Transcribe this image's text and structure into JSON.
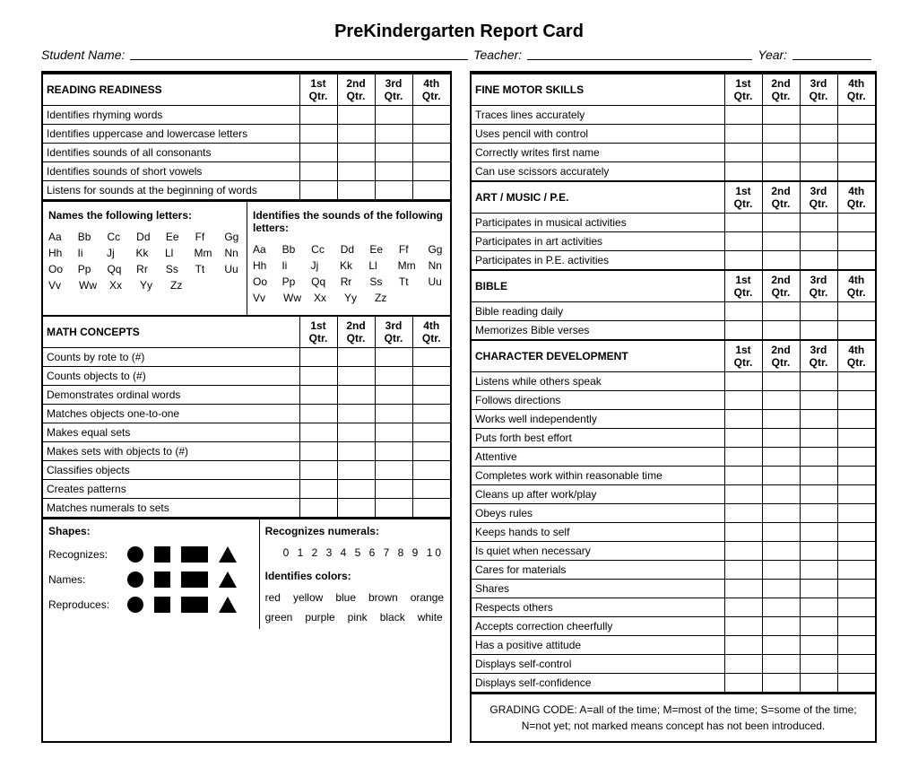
{
  "title": "PreKindergarten Report Card",
  "header": {
    "student_label": "Student Name:",
    "teacher_label": "Teacher:",
    "year_label": "Year:"
  },
  "quarters": [
    "1st Qtr.",
    "2nd Qtr.",
    "3rd Qtr.",
    "4th Qtr."
  ],
  "left": {
    "reading": {
      "title": "READING READINESS",
      "items": [
        "Identifies rhyming words",
        "Identifies uppercase and lowercase letters",
        "Identifies sounds of all consonants",
        "Identifies sounds of short vowels",
        "Listens for sounds at the beginning of words"
      ]
    },
    "letters_block": {
      "left_title": "Names the following letters:",
      "right_title": "Identifies the sounds of  the following letters:",
      "rows": [
        [
          "Aa",
          "Bb",
          "Cc",
          "Dd",
          "Ee",
          "Ff",
          "Gg"
        ],
        [
          "Hh",
          "Ii",
          "Jj",
          "Kk",
          "Ll",
          "Mm",
          "Nn"
        ],
        [
          "Oo",
          "Pp",
          "Qq",
          "Rr",
          "Ss",
          "Tt",
          "Uu"
        ],
        [
          "Vv",
          "Ww",
          "Xx",
          "Yy",
          "Zz"
        ]
      ]
    },
    "math": {
      "title": "MATH CONCEPTS",
      "items": [
        "Counts by rote to (#)",
        "Counts objects to (#)",
        "Demonstrates ordinal words",
        "Matches objects one-to-one",
        "Makes equal sets",
        "Makes sets with objects to (#)",
        "Classifies objects",
        "Creates patterns",
        "Matches numerals to sets"
      ]
    },
    "shapes_block": {
      "shapes_title": "Shapes:",
      "row_labels": [
        "Recognizes:",
        "Names:",
        "Reproduces:"
      ],
      "numerals_title": "Recognizes numerals:",
      "numerals": "0 1 2 3 4 5 6 7 8 9 10",
      "colors_title": "Identifies colors:",
      "colors": [
        "red",
        "yellow",
        "blue",
        "brown",
        "orange",
        "green",
        "purple",
        "pink",
        "black",
        "white"
      ]
    }
  },
  "right": {
    "fine_motor": {
      "title": "FINE MOTOR SKILLS",
      "items": [
        "Traces lines accurately",
        "Uses pencil with control",
        "Correctly writes first name",
        "Can use scissors accurately"
      ]
    },
    "art": {
      "title": "ART / MUSIC / P.E.",
      "items": [
        "Participates in musical activities",
        "Participates in art activities",
        "Participates in P.E. activities"
      ]
    },
    "bible": {
      "title": "BIBLE",
      "items": [
        "Bible reading daily",
        "Memorizes Bible verses"
      ]
    },
    "character": {
      "title": "CHARACTER DEVELOPMENT",
      "items": [
        "Listens while others speak",
        "Follows directions",
        "Works well independently",
        "Puts forth best effort",
        "Attentive",
        "Completes work within reasonable time",
        "Cleans up after work/play",
        "Obeys rules",
        "Keeps hands to self",
        "Is quiet when necessary",
        "Cares for materials",
        "Shares",
        "Respects others",
        "Accepts correction cheerfully",
        "Has a positive attitude",
        "Displays self-control",
        "Displays self-confidence"
      ]
    },
    "grading_code": {
      "line1": "GRADING CODE: A=all of the time; M=most of the time; S=some of the time;",
      "line2": "N=not yet; not marked means concept has not been introduced."
    }
  },
  "colors_hex": {
    "border": "#000000",
    "background": "#ffffff",
    "text": "#000000"
  }
}
